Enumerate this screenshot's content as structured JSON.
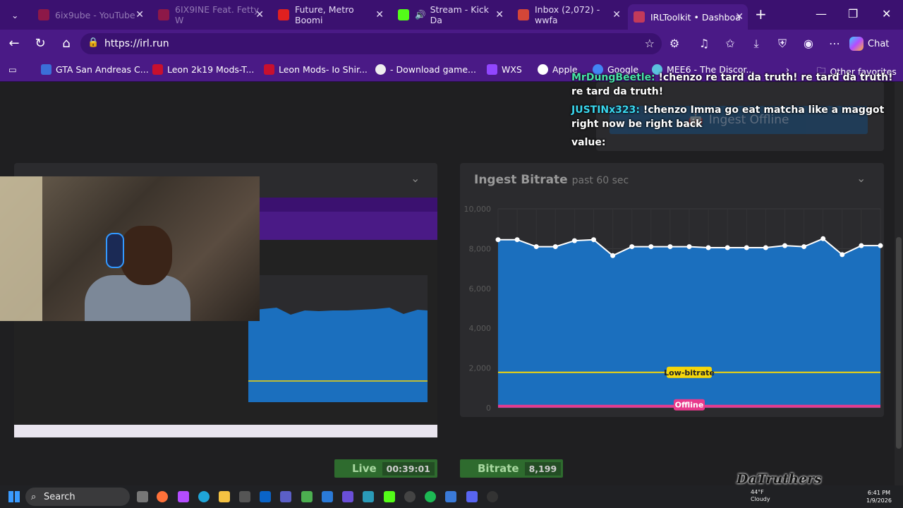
{
  "browser": {
    "tabs": [
      {
        "label": "6ix9ube - YouTube",
        "color": "#e02020"
      },
      {
        "label": "6IX9INE Feat. Fetty W",
        "color": "#e02020"
      },
      {
        "label": "Future, Metro Boomi",
        "color": "#e02020"
      },
      {
        "label": "Stream - Kick Da",
        "color": "#53fc18"
      },
      {
        "label": "Inbox (2,072) - wwfa",
        "color": "#d44638"
      },
      {
        "label": "IRLToolkit • Dashboa",
        "color": "#c23a5a"
      }
    ],
    "url": "https://irl.run",
    "chat_label": "Chat",
    "favorites": [
      {
        "label": "GTA San Andreas C...",
        "icon": "gta-icon",
        "color": "#3b6fd8"
      },
      {
        "label": "Leon 2k19 Mods-T...",
        "icon": "leon-icon",
        "color": "#c8102e"
      },
      {
        "label": "Leon Mods- Io Shir...",
        "icon": "leon-icon",
        "color": "#c8102e"
      },
      {
        "label": "- Download game...",
        "icon": "wordpress-icon",
        "color": "#eeeeee"
      },
      {
        "label": "WXS",
        "icon": "twitch-icon",
        "color": "#9146ff"
      },
      {
        "label": "Apple",
        "icon": "apple-icon",
        "color": "#ffffff"
      },
      {
        "label": "Google",
        "icon": "google-icon",
        "color": "#4285f4"
      },
      {
        "label": "MEE6 - The Discor...",
        "icon": "mee6-icon",
        "color": "#5bc0de"
      }
    ],
    "other_favorites": "Other favorites"
  },
  "dashboard": {
    "ingest_offline": "Ingest Offline",
    "chart_title": "Ingest Bitrate",
    "chart_subtitle": "past 60 sec",
    "live_label": "Live",
    "live_time": "00:39:01",
    "bitrate_label": "Bitrate",
    "bitrate_value": "8,199",
    "low_bitrate_label": "Low-bitrate",
    "offline_label": "Offline"
  },
  "chart_data": {
    "type": "area",
    "title": "Ingest Bitrate",
    "subtitle": "past 60 sec",
    "ylim": [
      0,
      10000
    ],
    "yticks": [
      "0",
      "2,000",
      "4,000",
      "6,000",
      "8,000",
      "10,000"
    ],
    "ytick_values": [
      0,
      2000,
      4000,
      6000,
      8000,
      10000
    ],
    "values": [
      8450,
      8450,
      8100,
      8100,
      8400,
      8450,
      7650,
      8100,
      8100,
      8100,
      8100,
      8050,
      8050,
      8050,
      8050,
      8150,
      8100,
      8500,
      7700,
      8150,
      8150
    ],
    "thresholds": [
      {
        "label": "Low-bitrate",
        "value": 1000,
        "color": "#f5d60a"
      },
      {
        "label": "Offline",
        "value": 80,
        "color": "#e83a8c"
      }
    ],
    "fill_color": "#1b6fbe"
  },
  "chat": [
    {
      "user": "MrDungBeetle:",
      "user_color": "#46e3a6",
      "text": "!chenzo re tard da truth! re tard da truth! re tard da truth!"
    },
    {
      "user": "JUSTINx323:",
      "user_color": "#39d7ee",
      "text": "!chenzo Imma go eat matcha like a maggot right now be right back"
    },
    {
      "user": "value:",
      "user_color": "#ffffff",
      "text": ""
    }
  ],
  "overlay": {
    "watermark": "DaTruthers"
  },
  "taskbar": {
    "search_label": "Search",
    "weather_temp": "44°F",
    "weather_desc": "Cloudy",
    "time": "6:41 PM",
    "date": "1/9/2026"
  }
}
